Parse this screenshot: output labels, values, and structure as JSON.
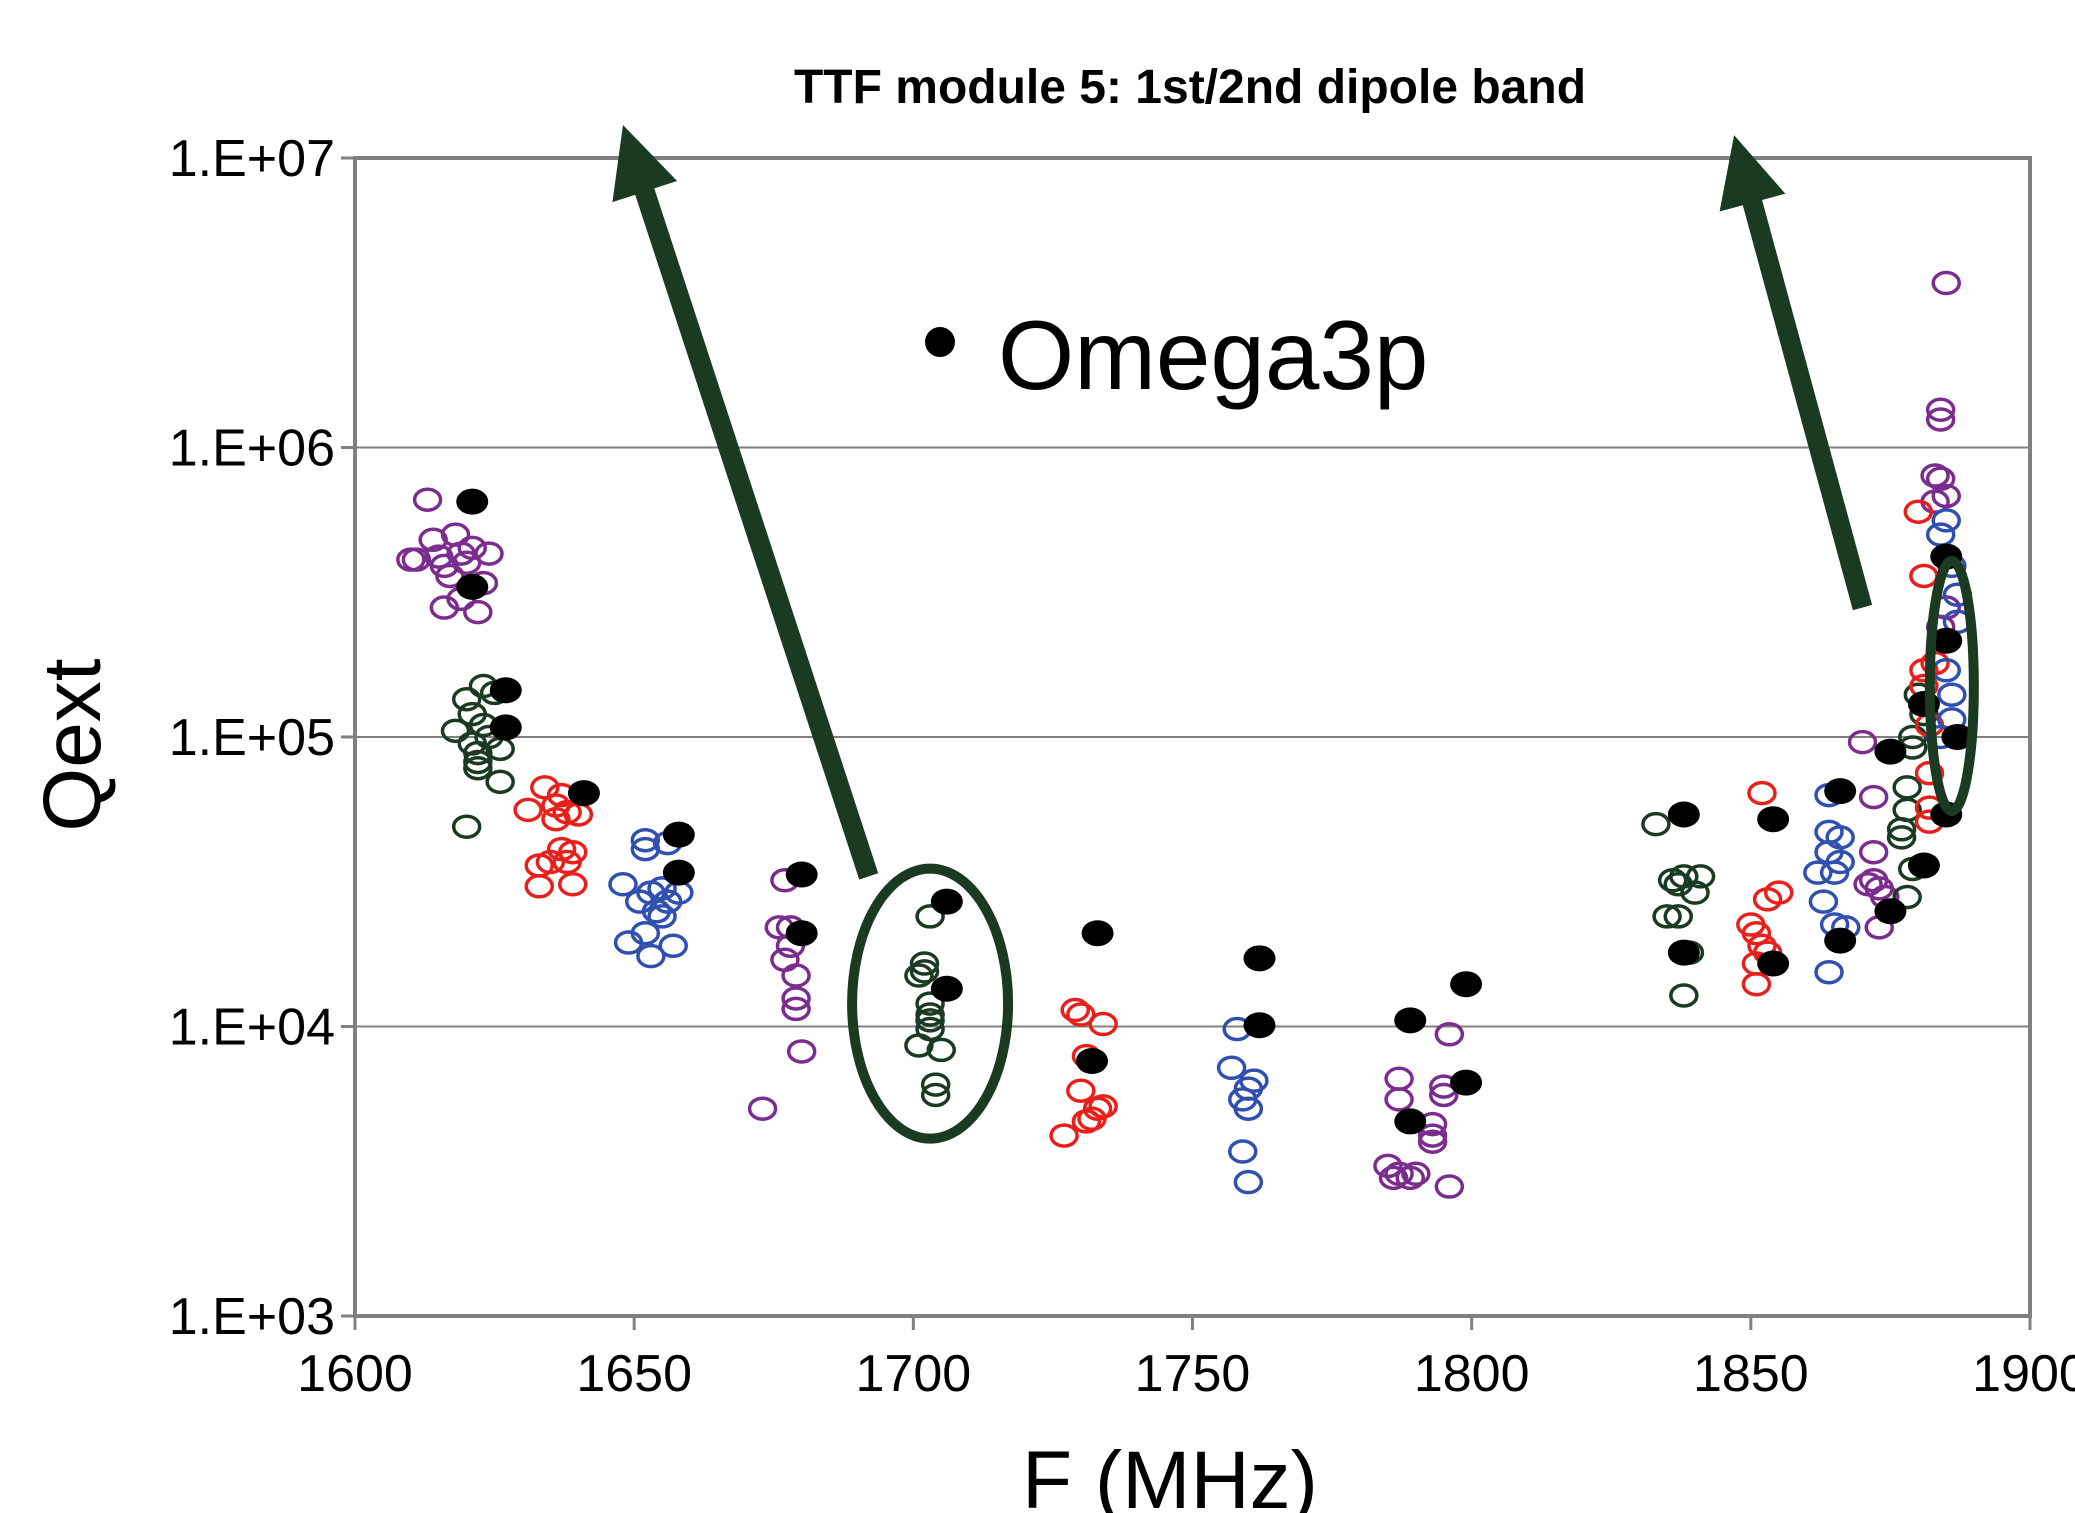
{
  "chart_data": {
    "type": "scatter",
    "title": "TTF module 5: 1st/2nd dipole band",
    "xlabel": "F (MHz)",
    "ylabel": "Qext",
    "xlim": [
      1600,
      1900
    ],
    "ylim": [
      1000,
      10000000
    ],
    "yscale": "log",
    "x_ticks": [
      "1600",
      "1650",
      "1700",
      "1750",
      "1800",
      "1850",
      "1900"
    ],
    "y_ticks": [
      "1.E+03",
      "1.E+04",
      "1.E+05",
      "1.E+06",
      "1.E+07"
    ],
    "grid": "horizontal",
    "legend": [
      {
        "label": "Omega3p",
        "marker": "filled circle",
        "color": "#000000"
      }
    ],
    "colors": {
      "purple": "#7b2d8e",
      "darkgreen": "#1a3a22",
      "red": "#e8201c",
      "blue": "#3050b0",
      "black": "#000000",
      "arrow": "#1a3a22"
    },
    "series": [
      {
        "color": "purple",
        "marker": "open circle",
        "points": [
          [
            1611,
            410000
          ],
          [
            1613,
            660000
          ],
          [
            1614,
            480000
          ],
          [
            1615,
            420000
          ],
          [
            1616,
            390000
          ],
          [
            1617,
            360000
          ],
          [
            1618,
            500000
          ],
          [
            1619,
            430000
          ],
          [
            1620,
            400000
          ],
          [
            1621,
            450000
          ],
          [
            1616,
            280000
          ],
          [
            1619,
            300000
          ],
          [
            1622,
            270000
          ],
          [
            1624,
            430000
          ],
          [
            1623,
            340000
          ],
          [
            1610,
            410000
          ],
          [
            1673,
            5200
          ],
          [
            1677,
            32000
          ],
          [
            1677,
            17000
          ],
          [
            1678,
            22000
          ],
          [
            1678,
            19000
          ],
          [
            1679,
            15000
          ],
          [
            1679,
            11500
          ],
          [
            1679,
            12500
          ],
          [
            1680,
            8200
          ],
          [
            1676,
            22000
          ],
          [
            1785,
            3300
          ],
          [
            1786,
            3000
          ],
          [
            1787,
            3100
          ],
          [
            1787,
            5600
          ],
          [
            1787,
            6600
          ],
          [
            1789,
            3000
          ],
          [
            1790,
            3100
          ],
          [
            1793,
            4200
          ],
          [
            1793,
            4600
          ],
          [
            1795,
            5800
          ],
          [
            1795,
            6200
          ],
          [
            1796,
            9400
          ],
          [
            1796,
            2800
          ],
          [
            1793,
            4000
          ],
          [
            1870,
            96000
          ],
          [
            1872,
            62000
          ],
          [
            1872,
            40000
          ],
          [
            1872,
            32000
          ],
          [
            1873,
            30000
          ],
          [
            1873,
            22000
          ],
          [
            1874,
            28000
          ],
          [
            1871,
            31000
          ],
          [
            1883,
            800000
          ],
          [
            1884,
            1350000
          ],
          [
            1884,
            1250000
          ],
          [
            1885,
            3700000
          ],
          [
            1884,
            780000
          ],
          [
            1885,
            680000
          ],
          [
            1883,
            650000
          ],
          [
            1885,
            280000
          ],
          [
            1884,
            240000
          ]
        ]
      },
      {
        "color": "darkgreen",
        "marker": "open circle",
        "points": [
          [
            1620,
            49000
          ],
          [
            1618,
            105000
          ],
          [
            1620,
            135000
          ],
          [
            1621,
            120000
          ],
          [
            1621,
            95000
          ],
          [
            1622,
            88000
          ],
          [
            1622,
            78000
          ],
          [
            1623,
            110000
          ],
          [
            1623,
            150000
          ],
          [
            1624,
            100000
          ],
          [
            1625,
            142000
          ],
          [
            1626,
            91000
          ],
          [
            1626,
            70000
          ],
          [
            1622,
            82000
          ],
          [
            1701,
            8600
          ],
          [
            1702,
            16500
          ],
          [
            1702,
            15500
          ],
          [
            1703,
            11000
          ],
          [
            1703,
            9800
          ],
          [
            1703,
            10500
          ],
          [
            1703,
            24000
          ],
          [
            1704,
            5800
          ],
          [
            1704,
            6300
          ],
          [
            1705,
            8300
          ],
          [
            1701,
            15000
          ],
          [
            1703,
            12000
          ],
          [
            1833,
            50000
          ],
          [
            1835,
            24000
          ],
          [
            1836,
            32000
          ],
          [
            1837,
            24000
          ],
          [
            1837,
            31000
          ],
          [
            1838,
            12800
          ],
          [
            1838,
            33000
          ],
          [
            1839,
            18000
          ],
          [
            1840,
            29000
          ],
          [
            1841,
            33000
          ],
          [
            1877,
            45000
          ],
          [
            1877,
            48000
          ],
          [
            1878,
            67000
          ],
          [
            1878,
            56000
          ],
          [
            1879,
            100000
          ],
          [
            1879,
            92000
          ],
          [
            1880,
            140000
          ],
          [
            1881,
            120000
          ],
          [
            1878,
            28000
          ],
          [
            1879,
            35000
          ],
          [
            1881,
            130000
          ]
        ]
      },
      {
        "color": "red",
        "marker": "open circle",
        "points": [
          [
            1631,
            56000
          ],
          [
            1633,
            36000
          ],
          [
            1633,
            30500
          ],
          [
            1634,
            67000
          ],
          [
            1635,
            37000
          ],
          [
            1636,
            52000
          ],
          [
            1636,
            58000
          ],
          [
            1637,
            41000
          ],
          [
            1637,
            63000
          ],
          [
            1638,
            37000
          ],
          [
            1638,
            55000
          ],
          [
            1639,
            40000
          ],
          [
            1640,
            54000
          ],
          [
            1639,
            31000
          ],
          [
            1727,
            4200
          ],
          [
            1729,
            11400
          ],
          [
            1730,
            6000
          ],
          [
            1730,
            11000
          ],
          [
            1731,
            4700
          ],
          [
            1731,
            7900
          ],
          [
            1732,
            4800
          ],
          [
            1733,
            5200
          ],
          [
            1734,
            10200
          ],
          [
            1734,
            5300
          ],
          [
            1850,
            22500
          ],
          [
            1851,
            14000
          ],
          [
            1851,
            16500
          ],
          [
            1851,
            21000
          ],
          [
            1852,
            19000
          ],
          [
            1852,
            64000
          ],
          [
            1853,
            27500
          ],
          [
            1853,
            18000
          ],
          [
            1855,
            29000
          ],
          [
            1880,
            600000
          ],
          [
            1881,
            170000
          ],
          [
            1881,
            150000
          ],
          [
            1882,
            110000
          ],
          [
            1882,
            75000
          ],
          [
            1882,
            57000
          ],
          [
            1882,
            51000
          ],
          [
            1883,
            180000
          ],
          [
            1881,
            360000
          ]
        ]
      },
      {
        "color": "blue",
        "marker": "open circle",
        "points": [
          [
            1648,
            31000
          ],
          [
            1649,
            19500
          ],
          [
            1651,
            27000
          ],
          [
            1652,
            21000
          ],
          [
            1652,
            44000
          ],
          [
            1652,
            41000
          ],
          [
            1653,
            29000
          ],
          [
            1653,
            17500
          ],
          [
            1654,
            25000
          ],
          [
            1655,
            30000
          ],
          [
            1656,
            43000
          ],
          [
            1656,
            27000
          ],
          [
            1657,
            19000
          ],
          [
            1658,
            29000
          ],
          [
            1655,
            24000
          ],
          [
            1757,
            7200
          ],
          [
            1758,
            9800
          ],
          [
            1759,
            3700
          ],
          [
            1760,
            2900
          ],
          [
            1759,
            5600
          ],
          [
            1760,
            6100
          ],
          [
            1761,
            6500
          ],
          [
            1760,
            5200
          ],
          [
            1862,
            34000
          ],
          [
            1863,
            27000
          ],
          [
            1864,
            63000
          ],
          [
            1864,
            47000
          ],
          [
            1864,
            40000
          ],
          [
            1864,
            15400
          ],
          [
            1865,
            34000
          ],
          [
            1865,
            22500
          ],
          [
            1866,
            45000
          ],
          [
            1866,
            37000
          ],
          [
            1867,
            22000
          ],
          [
            1884,
            500000
          ],
          [
            1885,
            560000
          ],
          [
            1886,
            390000
          ],
          [
            1887,
            250000
          ],
          [
            1885,
            170000
          ],
          [
            1886,
            140000
          ],
          [
            1886,
            115000
          ],
          [
            1884,
            100000
          ],
          [
            1887,
            310000
          ]
        ]
      },
      {
        "name": "Omega3p",
        "color": "black",
        "marker": "filled circle",
        "points": [
          [
            1621,
            650000
          ],
          [
            1621,
            330000
          ],
          [
            1627,
            145000
          ],
          [
            1627,
            108000
          ],
          [
            1641,
            64000
          ],
          [
            1658,
            46000
          ],
          [
            1658,
            34000
          ],
          [
            1680,
            33500
          ],
          [
            1680,
            21000
          ],
          [
            1706,
            27000
          ],
          [
            1706,
            13500
          ],
          [
            1733,
            21000
          ],
          [
            1732,
            7600
          ],
          [
            1762,
            17200
          ],
          [
            1762,
            10100
          ],
          [
            1789,
            10500
          ],
          [
            1789,
            4700
          ],
          [
            1799,
            14000
          ],
          [
            1799,
            6400
          ],
          [
            1838,
            54000
          ],
          [
            1838,
            18000
          ],
          [
            1854,
            52000
          ],
          [
            1854,
            16500
          ],
          [
            1866,
            65000
          ],
          [
            1866,
            19800
          ],
          [
            1875,
            89000
          ],
          [
            1875,
            25000
          ],
          [
            1881,
            130000
          ],
          [
            1881,
            36000
          ],
          [
            1885,
            420000
          ],
          [
            1885,
            215000
          ],
          [
            1887,
            100000
          ],
          [
            1885,
            54000
          ]
        ]
      }
    ],
    "annotations": [
      {
        "type": "ellipse",
        "x": 1703,
        "y": 12000
      },
      {
        "type": "ellipse",
        "x": 1886,
        "y": 150000
      },
      {
        "type": "arrow",
        "from": [
          1692,
          33000
        ],
        "to": [
          1648,
          13000000
        ]
      },
      {
        "type": "arrow",
        "from": [
          1870,
          280000
        ],
        "to": [
          1847,
          12000000
        ]
      }
    ]
  }
}
